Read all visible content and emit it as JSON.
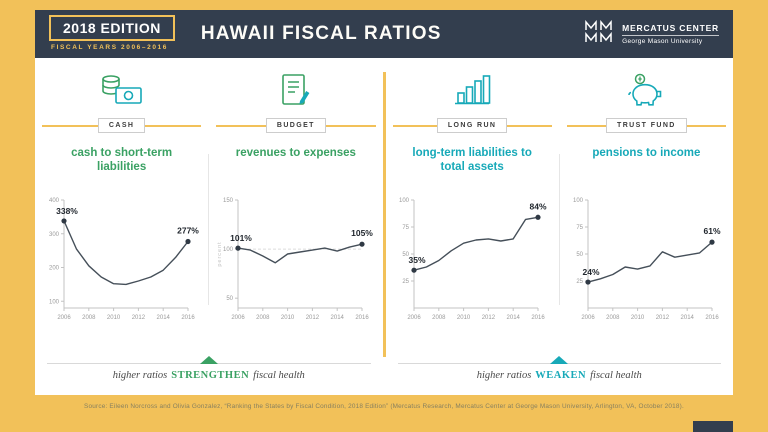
{
  "header": {
    "edition": "2018 EDITION",
    "fiscal_years": "FISCAL YEARS 2006–2016",
    "title": "HAWAII FISCAL RATIOS",
    "logo_name": "MERCATUS CENTER",
    "logo_sub": "George Mason University"
  },
  "colors": {
    "yellow": "#F2C159",
    "navy": "#333E4E",
    "green": "#3AA163",
    "teal": "#17A9B8",
    "chart_line": "#454f59"
  },
  "icons": [
    "money-stack-icon",
    "budget-checklist-icon",
    "bar-growth-icon",
    "piggy-bank-icon",
    "mercatus-logo-icon"
  ],
  "columns": [
    {
      "category": "CASH",
      "title": "cash to short-term liabilities",
      "theme": "green"
    },
    {
      "category": "BUDGET",
      "title": "revenues to expenses",
      "theme": "green"
    },
    {
      "category": "LONG RUN",
      "title": "long-term liabilities to total assets",
      "theme": "teal"
    },
    {
      "category": "TRUST FUND",
      "title": "pensions to income",
      "theme": "teal"
    }
  ],
  "chart_data": [
    {
      "type": "line",
      "title": "cash to short-term liabilities",
      "x": [
        2006,
        2007,
        2008,
        2009,
        2010,
        2011,
        2012,
        2013,
        2014,
        2015,
        2016
      ],
      "values": [
        338,
        255,
        205,
        172,
        152,
        150,
        160,
        172,
        192,
        230,
        277
      ],
      "yticks": [
        100,
        200,
        300,
        400
      ],
      "ylim": [
        80,
        400
      ],
      "xticks": [
        2006,
        2008,
        2010,
        2012,
        2014,
        2016
      ],
      "start_label": "338%",
      "end_label": "277%",
      "ref_line": null,
      "axis_label": null,
      "legend": "none",
      "grid": false
    },
    {
      "type": "line",
      "title": "revenues to expenses",
      "x": [
        2006,
        2007,
        2008,
        2009,
        2010,
        2011,
        2012,
        2013,
        2014,
        2015,
        2016
      ],
      "values": [
        101,
        99,
        93,
        86,
        95,
        97,
        99,
        101,
        98,
        102,
        105
      ],
      "yticks": [
        50,
        100,
        150
      ],
      "ylim": [
        40,
        150
      ],
      "xticks": [
        2006,
        2008,
        2010,
        2012,
        2014,
        2016
      ],
      "start_label": "101%",
      "end_label": "105%",
      "ref_line": 100,
      "axis_label": "percent",
      "legend": "none",
      "grid": false
    },
    {
      "type": "line",
      "title": "long-term liabilities to total assets",
      "x": [
        2006,
        2007,
        2008,
        2009,
        2010,
        2011,
        2012,
        2013,
        2014,
        2015,
        2016
      ],
      "values": [
        35,
        38,
        44,
        53,
        60,
        63,
        64,
        62,
        64,
        82,
        84
      ],
      "yticks": [
        25,
        50,
        75,
        100
      ],
      "ylim": [
        0,
        100
      ],
      "xticks": [
        2006,
        2008,
        2010,
        2012,
        2014,
        2016
      ],
      "start_label": "35%",
      "end_label": "84%",
      "ref_line": null,
      "axis_label": null,
      "legend": "none",
      "grid": false
    },
    {
      "type": "line",
      "title": "pensions to income",
      "x": [
        2006,
        2007,
        2008,
        2009,
        2010,
        2011,
        2012,
        2013,
        2014,
        2015,
        2016
      ],
      "values": [
        24,
        27,
        31,
        38,
        36,
        39,
        52,
        47,
        49,
        51,
        61
      ],
      "yticks": [
        25,
        50,
        75,
        100
      ],
      "ylim": [
        0,
        100
      ],
      "xticks": [
        2006,
        2008,
        2010,
        2012,
        2014,
        2016
      ],
      "start_label": "24%",
      "end_label": "61%",
      "ref_line": null,
      "axis_label": null,
      "legend": "none",
      "grid": false
    }
  ],
  "strengthen": {
    "prefix": "higher ratios",
    "keyword": "STRENGTHEN",
    "suffix": "fiscal health"
  },
  "weaken": {
    "prefix": "higher ratios",
    "keyword": "WEAKEN",
    "suffix": "fiscal health"
  },
  "source": "Source: Eileen Norcross and Olivia Gonzalez, “Ranking the States by Fiscal Condition, 2018 Edition” (Mercatus Research, Mercatus Center at George Mason University, Arlington, VA, October 2018)."
}
